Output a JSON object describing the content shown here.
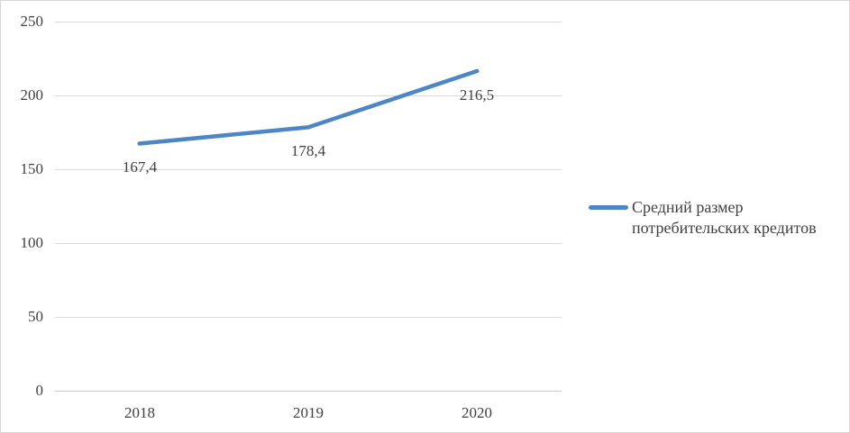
{
  "chart_data": {
    "type": "line",
    "categories": [
      "2018",
      "2019",
      "2020"
    ],
    "series": [
      {
        "name": "Средний размер потребительских кредитов",
        "values": [
          167.4,
          178.4,
          216.5
        ],
        "data_labels": [
          "167,4",
          "178,4",
          "216,5"
        ],
        "color": "#4e86c5"
      }
    ],
    "title": "",
    "xlabel": "",
    "ylabel": "",
    "ylim": [
      0,
      250
    ],
    "yticks": [
      0,
      50,
      100,
      150,
      200,
      250
    ],
    "ytick_labels": [
      "0",
      "50",
      "100",
      "150",
      "200",
      "250"
    ],
    "grid": true,
    "data_label_position": "below",
    "legend_position": "right"
  },
  "legend": {
    "label": "Средний размер потребительских кредитов"
  },
  "colors": {
    "line": "#4e86c5",
    "gridline": "#d9d9d9",
    "axis_line": "#c6c6c6",
    "text": "#404040",
    "border": "#d6d6d6",
    "background": "#ffffff"
  }
}
